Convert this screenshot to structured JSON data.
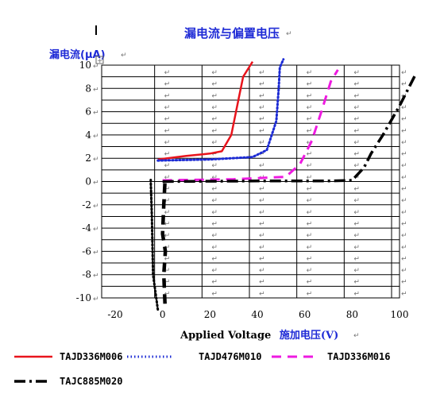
{
  "chart_data": {
    "type": "line",
    "title": "漏电流与偏置电压",
    "ylabel": "漏电流(μA)",
    "xlabel": "Applied Voltage",
    "xlabel_cn": "施加电压(V)",
    "xlim": [
      -20,
      100
    ],
    "ylim": [
      -10,
      10
    ],
    "x_ticks": [
      "-20",
      "0",
      "20",
      "40",
      "60",
      "80",
      "100"
    ],
    "y_ticks": [
      "10",
      "8",
      "6",
      "4",
      "2",
      "0",
      "-2",
      "-4",
      "-6",
      "-8",
      "-10"
    ],
    "grid": true,
    "legend_position": "bottom",
    "series": [
      {
        "name": "TAJD336M006",
        "color": "#e8141c",
        "dash": "solid",
        "width": 2.5,
        "points": [
          [
            -2,
            1.9
          ],
          [
            10,
            2.2
          ],
          [
            20,
            2.4
          ],
          [
            25,
            2.6
          ],
          [
            29,
            4
          ],
          [
            32,
            7
          ],
          [
            34,
            9
          ],
          [
            38,
            10.3
          ]
        ]
      },
      {
        "name": "TAJD476M010",
        "color": "#1c2bd4",
        "dash": "dotted",
        "width": 3,
        "points": [
          [
            -2,
            1.8
          ],
          [
            20,
            1.9
          ],
          [
            38,
            2.1
          ],
          [
            44,
            2.7
          ],
          [
            48,
            5.2
          ],
          [
            49,
            8
          ],
          [
            49.5,
            9.8
          ],
          [
            51,
            10.5
          ]
        ]
      },
      {
        "name": "TAJD336M016",
        "color": "#ee1ae0",
        "dash": "dashed",
        "width": 3,
        "points": [
          [
            0,
            0.1
          ],
          [
            30,
            0.2
          ],
          [
            52,
            0.4
          ],
          [
            58,
            1.5
          ],
          [
            63,
            3.5
          ],
          [
            67,
            6
          ],
          [
            71,
            8.6
          ],
          [
            74,
            9.6
          ]
        ]
      },
      {
        "name": "TAJC885M020",
        "color": "#000000",
        "dash": "dashdot",
        "width": 3.5,
        "points": [
          [
            0,
            0
          ],
          [
            40,
            0.05
          ],
          [
            70,
            0.05
          ],
          [
            80,
            0.1
          ],
          [
            85,
            1.2
          ],
          [
            88,
            2.4
          ],
          [
            93,
            4
          ],
          [
            100,
            6.5
          ],
          [
            107,
            9.3
          ]
        ]
      },
      {
        "name": "",
        "color": "#000000",
        "dash": "dotted",
        "width": 3,
        "points": [
          [
            -2,
            -11
          ],
          [
            -4,
            -8
          ],
          [
            -4.5,
            -3
          ],
          [
            -5,
            0
          ],
          [
            -5,
            0.2
          ]
        ]
      },
      {
        "name": "",
        "color": "#000000",
        "dash": "dashed",
        "width": 4.5,
        "points": [
          [
            1,
            -10.5
          ],
          [
            0.5,
            -8
          ],
          [
            1.2,
            -6
          ],
          [
            0,
            -4.5
          ],
          [
            0.5,
            -2
          ],
          [
            1,
            0
          ],
          [
            1.5,
            0.2
          ]
        ]
      }
    ]
  }
}
